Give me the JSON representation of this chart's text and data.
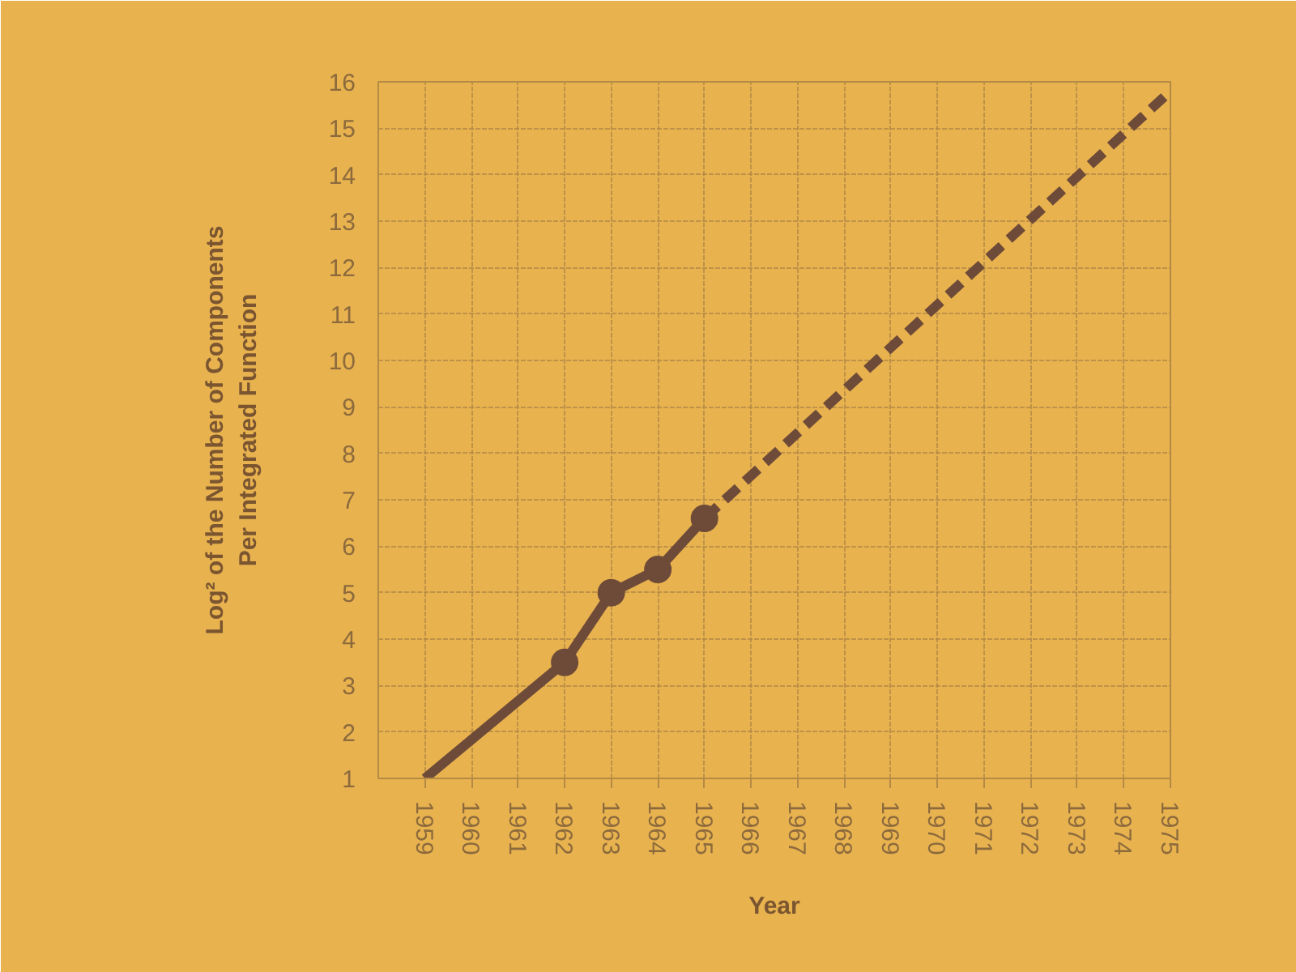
{
  "chart_data": {
    "type": "line",
    "xlabel": "Year",
    "ylabel": "Log² of the Number of Components\nPer Integrated Function",
    "series": [
      {
        "x": [
          1959,
          1962,
          1963,
          1964,
          1965
        ],
        "values": [
          1,
          3.5,
          5,
          5.5,
          6.6
        ],
        "color": "#6e4b38",
        "line_style": "solid",
        "marker": "none"
      },
      {
        "type": "scatter",
        "x": [
          1962,
          1963,
          1964,
          1965
        ],
        "values": [
          3.5,
          5,
          5.5,
          6.6
        ],
        "color": "#6e4b38",
        "marker": "circle"
      },
      {
        "x": [
          1965,
          1975
        ],
        "values": [
          6.6,
          15.8
        ],
        "color": "#6e4b38",
        "line_style": "dashed",
        "marker": "none"
      }
    ],
    "xlim": [
      1958,
      1975
    ],
    "ylim": [
      1,
      16
    ],
    "xticks": [
      1959,
      1960,
      1961,
      1962,
      1963,
      1964,
      1965,
      1966,
      1967,
      1968,
      1969,
      1970,
      1971,
      1972,
      1973,
      1974,
      1975
    ],
    "yticks": [
      1,
      2,
      3,
      4,
      5,
      6,
      7,
      8,
      9,
      10,
      11,
      12,
      13,
      14,
      15,
      16
    ],
    "grid": true
  }
}
